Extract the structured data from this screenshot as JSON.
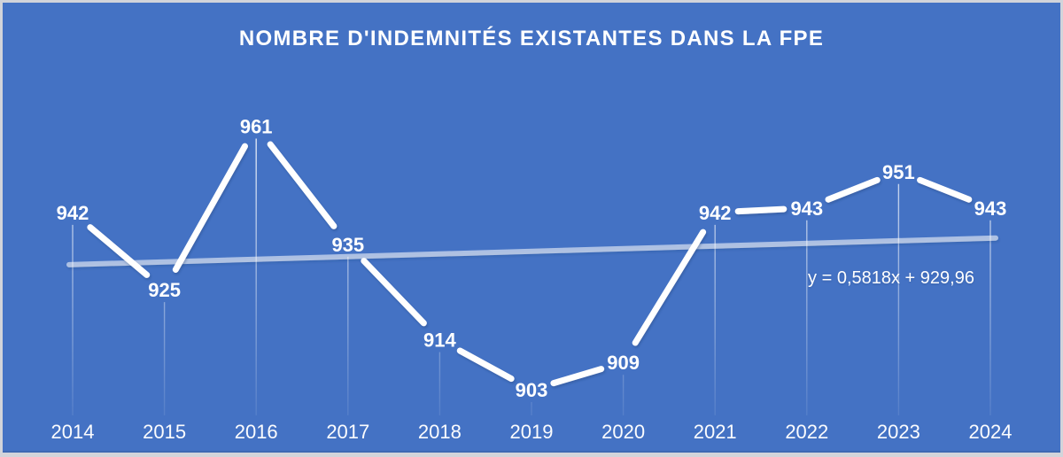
{
  "chart_data": {
    "type": "line",
    "title": "NOMBRE D'INDEMNITÉS EXISTANTES DANS LA FPE",
    "x": [
      "2014",
      "2015",
      "2016",
      "2017",
      "2018",
      "2019",
      "2020",
      "2021",
      "2022",
      "2023",
      "2024"
    ],
    "values": [
      942,
      925,
      961,
      935,
      914,
      903,
      909,
      942,
      943,
      951,
      943
    ],
    "xlabel": "",
    "ylabel": "",
    "ylim": [
      897,
      969
    ],
    "legend": "none",
    "grid": false,
    "label_position": "center-on-point",
    "drop_lines": true,
    "trendline": {
      "equation": "y = 0,5818x + 929,96",
      "slope": 0.5818,
      "intercept": 929.96
    },
    "colors": {
      "background": "#4472C4",
      "series_line": "#FFFFFF",
      "trendline": "rgba(255,255,255,0.55)",
      "label_text": "#FFFFFF",
      "drop_line": "#FFFFFF"
    }
  }
}
